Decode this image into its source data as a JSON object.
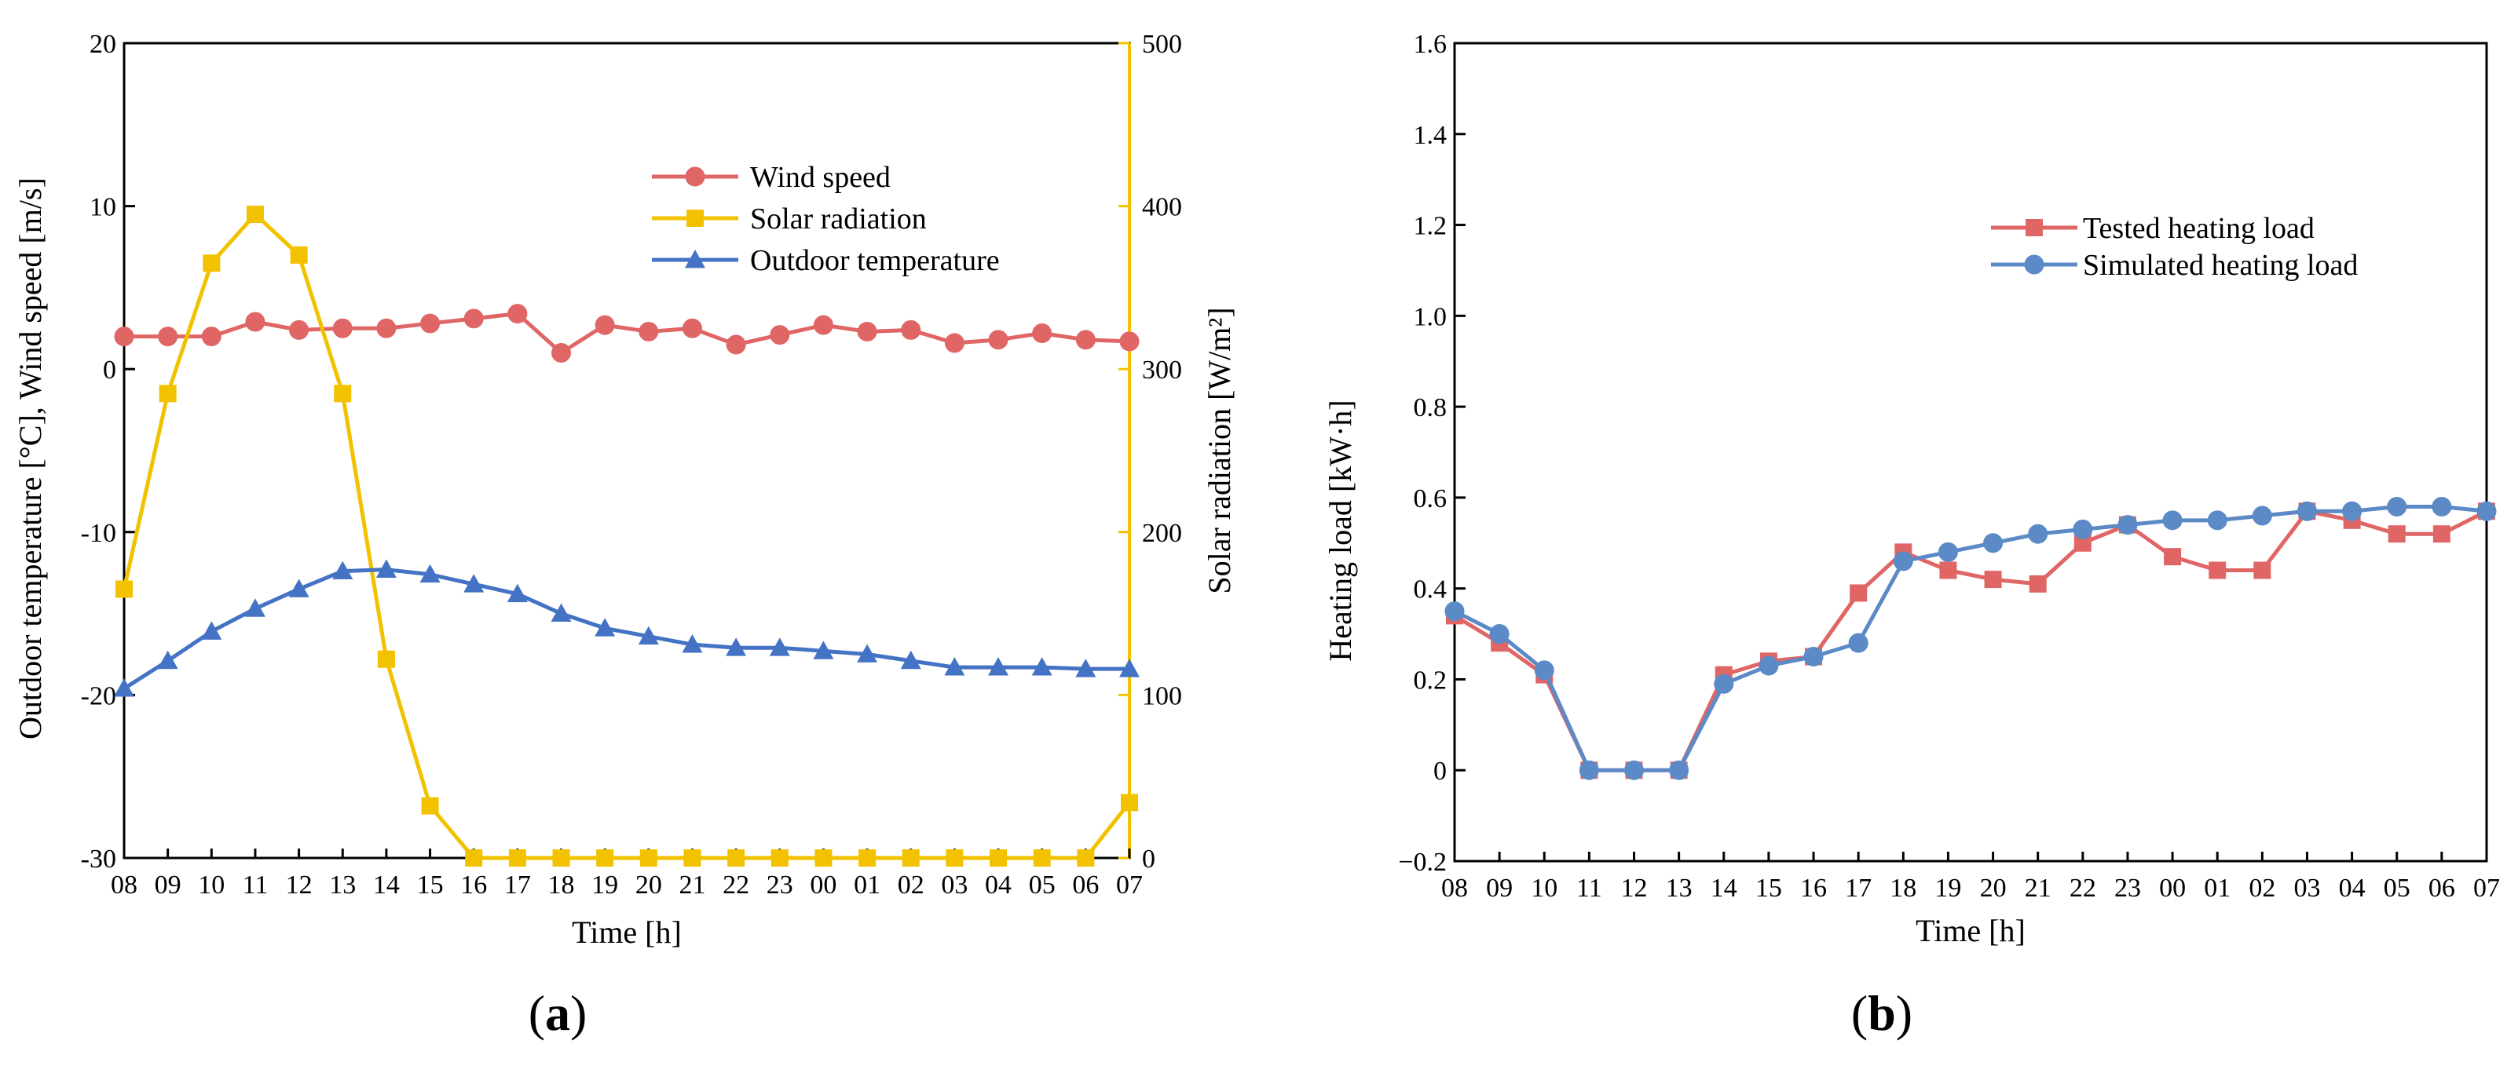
{
  "figure": {
    "panel_a_letter": "a",
    "panel_b_letter": "b",
    "paren_open": "(",
    "paren_close": ")"
  },
  "chart_data": [
    {
      "type": "line",
      "panel": "a",
      "categories": [
        "08",
        "09",
        "10",
        "11",
        "12",
        "13",
        "14",
        "15",
        "16",
        "17",
        "18",
        "19",
        "20",
        "21",
        "22",
        "23",
        "00",
        "01",
        "02",
        "03",
        "04",
        "05",
        "06",
        "07"
      ],
      "xlabel": "Time [h]",
      "ylabel_left": "Outdoor temperature [°C], Wind speed [m/s]",
      "ylabel_right": "Solar radiation [W/m²]",
      "ylim_left": [
        -30,
        20
      ],
      "ylim_right": [
        0,
        500
      ],
      "yticks_left": [
        "-30",
        "-20",
        "-10",
        "0",
        "10",
        "20"
      ],
      "yticks_right": [
        "0",
        "100",
        "200",
        "300",
        "400",
        "500"
      ],
      "legend_position": "top-right",
      "grid": false,
      "series": [
        {
          "name": "Wind speed",
          "axis": "left",
          "color": "#e06666",
          "marker": "circle",
          "values": [
            2.0,
            2.0,
            2.0,
            2.9,
            2.4,
            2.5,
            2.5,
            2.8,
            3.1,
            3.4,
            1.0,
            2.7,
            2.3,
            2.5,
            1.5,
            2.1,
            2.7,
            2.3,
            2.4,
            1.6,
            1.8,
            2.2,
            1.8,
            1.7
          ]
        },
        {
          "name": "Solar radiation",
          "axis": "right",
          "color": "#f2c200",
          "marker": "square",
          "values": [
            165,
            285,
            365,
            395,
            370,
            285,
            122,
            32,
            0,
            0,
            0,
            0,
            0,
            0,
            0,
            0,
            0,
            0,
            0,
            0,
            0,
            0,
            0,
            34
          ]
        },
        {
          "name": "Outdoor temperature",
          "axis": "left",
          "color": "#4472c4",
          "marker": "triangle",
          "values": [
            -19.6,
            -17.9,
            -16.1,
            -14.7,
            -13.5,
            -12.4,
            -12.3,
            -12.6,
            -13.2,
            -13.8,
            -15.0,
            -15.9,
            -16.4,
            -16.9,
            -17.1,
            -17.1,
            -17.3,
            -17.5,
            -17.9,
            -18.3,
            -18.3,
            -18.3,
            -18.4,
            -18.4
          ]
        }
      ]
    },
    {
      "type": "line",
      "panel": "b",
      "categories": [
        "08",
        "09",
        "10",
        "11",
        "12",
        "13",
        "14",
        "15",
        "16",
        "17",
        "18",
        "19",
        "20",
        "21",
        "22",
        "23",
        "00",
        "01",
        "02",
        "03",
        "04",
        "05",
        "06",
        "07"
      ],
      "xlabel": "Time [h]",
      "ylabel": "Heating load [kW·h]",
      "ylim": [
        -0.2,
        1.6
      ],
      "yticks": [
        "−0.2",
        "0",
        "0.2",
        "0.4",
        "0.6",
        "0.8",
        "1.0",
        "1.2",
        "1.4",
        "1.6"
      ],
      "legend_position": "upper-right",
      "grid": false,
      "series": [
        {
          "name": "Tested heating load",
          "color": "#e06666",
          "marker": "square",
          "values": [
            0.34,
            0.28,
            0.21,
            0.0,
            0.0,
            0.0,
            0.21,
            0.24,
            0.25,
            0.39,
            0.48,
            0.44,
            0.42,
            0.41,
            0.5,
            0.54,
            0.47,
            0.44,
            0.44,
            0.57,
            0.55,
            0.52,
            0.52,
            0.57
          ]
        },
        {
          "name": "Simulated heating load",
          "color": "#5b8ac6",
          "marker": "circle",
          "values": [
            0.35,
            0.3,
            0.22,
            0.0,
            0.0,
            0.0,
            0.19,
            0.23,
            0.25,
            0.28,
            0.46,
            0.48,
            0.5,
            0.52,
            0.53,
            0.54,
            0.55,
            0.55,
            0.56,
            0.57,
            0.57,
            0.58,
            0.58,
            0.57
          ]
        }
      ]
    }
  ]
}
